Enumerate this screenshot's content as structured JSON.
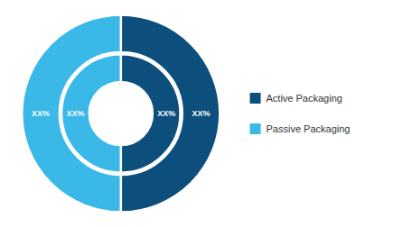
{
  "chart_data": {
    "type": "pie",
    "categories": [
      "Active Packaging",
      "Passive Packaging"
    ],
    "values": [
      50,
      50
    ],
    "colors": [
      "#0d4f7c",
      "#3ab8e8"
    ],
    "annotations": [
      "XX%",
      "XX%",
      "XX%",
      "XX%"
    ],
    "legend": "right"
  }
}
